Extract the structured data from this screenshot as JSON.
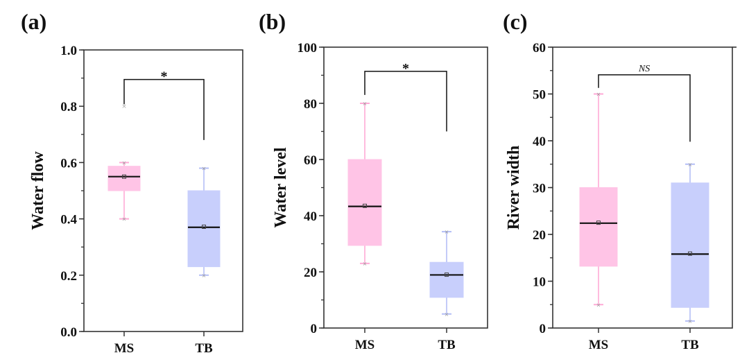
{
  "chart_data": [
    {
      "type": "box",
      "panel_label": "(a)",
      "title": "",
      "xlabel": "",
      "ylabel": "Water flow",
      "ylim": [
        0.0,
        1.0
      ],
      "yticks": [
        "0.0",
        "0.2",
        "0.4",
        "0.6",
        "0.8",
        "1.0"
      ],
      "ytick_values": [
        0.0,
        0.2,
        0.4,
        0.6,
        0.8,
        1.0
      ],
      "yminor_step": 0.1,
      "categories": [
        "MS",
        "TB"
      ],
      "grid": false,
      "series": [
        {
          "name": "MS",
          "color": "#FFC4E6",
          "whisker_color": "#FFAAD6",
          "whisker_low": 0.4,
          "q1": 0.5,
          "median": 0.55,
          "mean": 0.55,
          "q3": 0.587,
          "whisker_high": 0.6,
          "outliers": [
            0.8
          ]
        },
        {
          "name": "TB",
          "color": "#C8CFFC",
          "whisker_color": "#B4BEF6",
          "whisker_low": 0.2,
          "q1": 0.23,
          "median": 0.37,
          "mean": 0.372,
          "q3": 0.5,
          "whisker_high": 0.58,
          "outliers": []
        }
      ],
      "significance": {
        "label": "*",
        "style": "star",
        "bracket_top": 0.895,
        "left_end": 0.807,
        "right_end": 0.68
      }
    },
    {
      "type": "box",
      "panel_label": "(b)",
      "title": "",
      "xlabel": "",
      "ylabel": "Water level",
      "ylim": [
        0,
        100
      ],
      "yticks": [
        "0",
        "20",
        "40",
        "60",
        "80",
        "100"
      ],
      "ytick_values": [
        0,
        20,
        40,
        60,
        80,
        100
      ],
      "yminor_step": 10,
      "categories": [
        "MS",
        "TB"
      ],
      "grid": false,
      "series": [
        {
          "name": "MS",
          "color": "#FFC4E6",
          "whisker_color": "#FFAAD6",
          "whisker_low": 23,
          "q1": 29.4,
          "median": 43.3,
          "mean": 43.5,
          "q3": 60,
          "whisker_high": 80,
          "outliers": []
        },
        {
          "name": "TB",
          "color": "#C8CFFC",
          "whisker_color": "#B4BEF6",
          "whisker_low": 5,
          "q1": 10.9,
          "median": 18.9,
          "mean": 19.0,
          "q3": 23.4,
          "whisker_high": 34.3,
          "outliers": []
        }
      ],
      "significance": {
        "label": "*",
        "style": "star",
        "bracket_top": 91.4,
        "left_end": 83,
        "right_end": 70
      }
    },
    {
      "type": "box",
      "panel_label": "(c)",
      "title": "",
      "xlabel": "",
      "ylabel": "River width",
      "ylim": [
        0,
        60
      ],
      "yticks": [
        "0",
        "10",
        "20",
        "30",
        "40",
        "50",
        "60"
      ],
      "ytick_values": [
        0,
        10,
        20,
        30,
        40,
        50,
        60
      ],
      "yminor_step": 5,
      "categories": [
        "MS",
        "TB"
      ],
      "grid": false,
      "series": [
        {
          "name": "MS",
          "color": "#FFC4E6",
          "whisker_color": "#FFAAD6",
          "whisker_low": 5,
          "q1": 13.2,
          "median": 22.4,
          "mean": 22.5,
          "q3": 30,
          "whisker_high": 50,
          "outliers": []
        },
        {
          "name": "TB",
          "color": "#C8CFFC",
          "whisker_color": "#B4BEF6",
          "whisker_low": 1.5,
          "q1": 4.4,
          "median": 15.8,
          "mean": 15.9,
          "q3": 31,
          "whisker_high": 35,
          "outliers": []
        }
      ],
      "significance": {
        "label": "NS",
        "style": "ns",
        "bracket_top": 54.1,
        "left_end": 51.3,
        "right_end": 39.8
      }
    }
  ]
}
